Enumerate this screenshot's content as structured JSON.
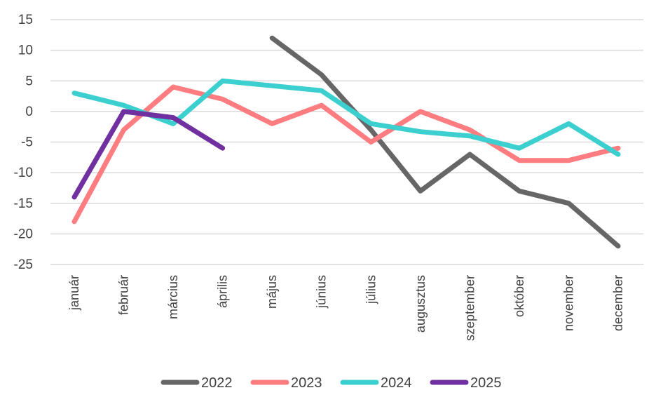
{
  "chart_data": {
    "type": "line",
    "categories": [
      "január",
      "február",
      "március",
      "április",
      "május",
      "június",
      "július",
      "augusztus",
      "szeptember",
      "október",
      "november",
      "december"
    ],
    "series": [
      {
        "name": "2022",
        "color": "#666666",
        "values": [
          null,
          null,
          null,
          null,
          12,
          6,
          -3,
          -13,
          -7,
          -13,
          -15,
          -22
        ]
      },
      {
        "name": "2023",
        "color": "#FF7C80",
        "values": [
          -18,
          -3,
          4,
          2,
          -2,
          1,
          -5,
          0,
          -3,
          -8,
          -8,
          -6
        ]
      },
      {
        "name": "2024",
        "color": "#3CCFCF",
        "values": [
          3,
          1,
          -2,
          5,
          4.2,
          3.4,
          -2,
          -3.3,
          -4,
          -6,
          -2,
          -7
        ]
      },
      {
        "name": "2025",
        "color": "#7030A0",
        "values": [
          -14,
          0,
          -1,
          -6,
          null,
          null,
          null,
          null,
          null,
          null,
          null,
          null
        ]
      }
    ],
    "y_ticks": [
      "15",
      "10",
      "5",
      "0",
      "-5",
      "-10",
      "-15",
      "-20",
      "-25"
    ],
    "ylim": [
      -25,
      15
    ],
    "grid": true,
    "legend": "bottom"
  }
}
